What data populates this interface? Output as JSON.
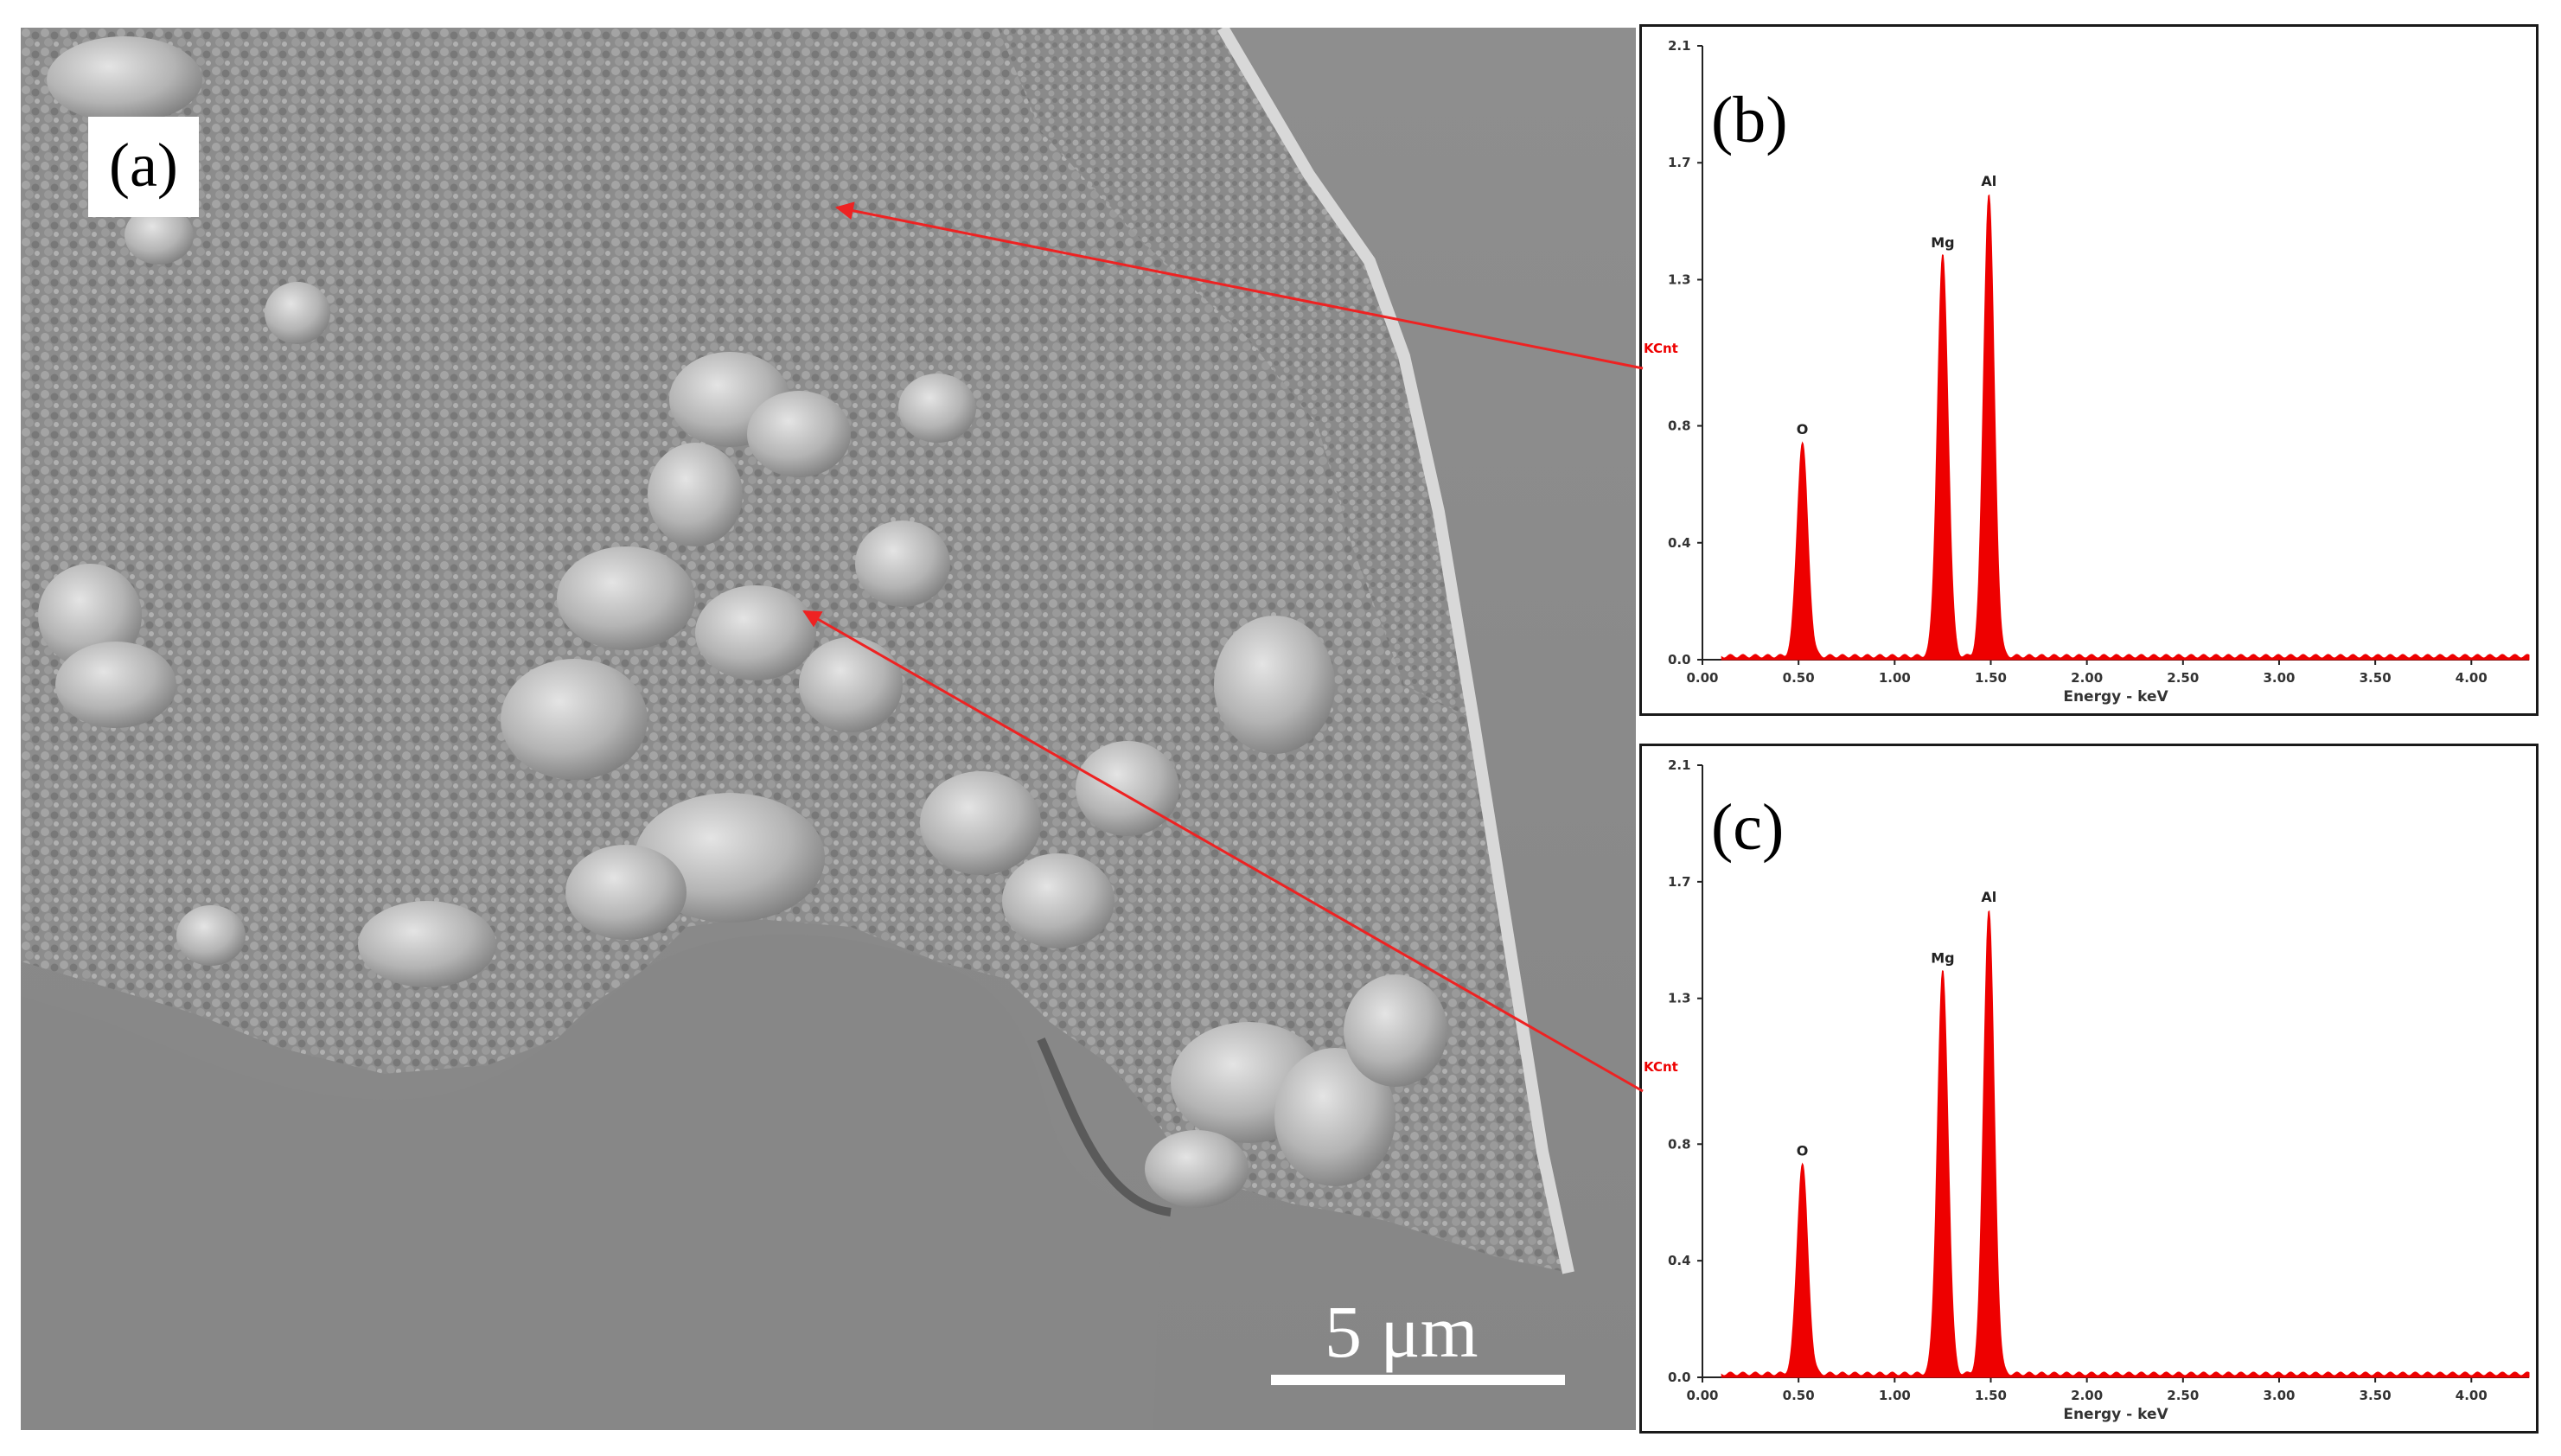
{
  "panels": {
    "a": {
      "label": "(a)",
      "scale_bar": "5 μm"
    },
    "b": {
      "label": "(b)"
    },
    "c": {
      "label": "(c)"
    }
  },
  "colors": {
    "spectrum": "#ee0000",
    "arrow": "#ee2222",
    "axis": "#222222"
  },
  "chart_data": [
    {
      "type": "area",
      "panel": "b",
      "xlabel": "Energy - keV",
      "ylabel": "KCnt",
      "xlim": [
        0,
        4.3
      ],
      "ylim": [
        0,
        2.1
      ],
      "x_ticks": [
        "0.00",
        "0.50",
        "1.00",
        "1.50",
        "2.00",
        "2.50",
        "3.00",
        "3.50",
        "4.00"
      ],
      "y_ticks": [
        "0.0",
        "0.4",
        "0.8",
        "1.3",
        "1.7",
        "2.1"
      ],
      "peaks": [
        {
          "label": "O",
          "x": 0.52,
          "y": 0.73
        },
        {
          "label": "Mg",
          "x": 1.25,
          "y": 1.37
        },
        {
          "label": "Al",
          "x": 1.49,
          "y": 1.58
        }
      ]
    },
    {
      "type": "area",
      "panel": "c",
      "xlabel": "Energy - keV",
      "ylabel": "KCnt",
      "xlim": [
        0,
        4.3
      ],
      "ylim": [
        0,
        2.1
      ],
      "x_ticks": [
        "0.00",
        "0.50",
        "1.00",
        "1.50",
        "2.00",
        "2.50",
        "3.00",
        "3.50",
        "4.00"
      ],
      "y_ticks": [
        "0.0",
        "0.4",
        "0.8",
        "1.3",
        "1.7",
        "2.1"
      ],
      "peaks": [
        {
          "label": "O",
          "x": 0.52,
          "y": 0.72
        },
        {
          "label": "Mg",
          "x": 1.25,
          "y": 1.38
        },
        {
          "label": "Al",
          "x": 1.49,
          "y": 1.59
        }
      ]
    }
  ]
}
